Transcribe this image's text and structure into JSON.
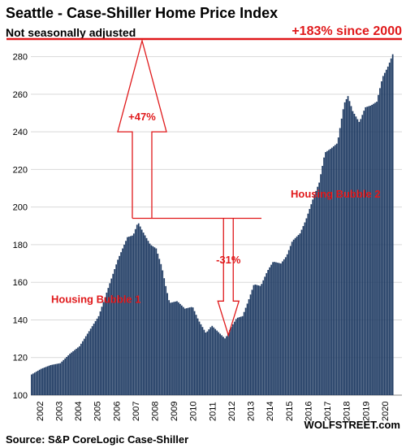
{
  "chart_data": {
    "type": "bar",
    "title": "Seattle - Case-Shiller Home Price Index",
    "subtitle": "Not seasonally adjusted",
    "source": "Source: S&P CoreLogic Case-Shiller",
    "brand": "WOLFSTREET.com",
    "ylim": [
      100,
      285
    ],
    "yticks": [
      100,
      120,
      140,
      160,
      180,
      200,
      220,
      240,
      260,
      280
    ],
    "xlim": [
      2002,
      2021.35
    ],
    "xticks": [
      "2002",
      "2003",
      "2004",
      "2005",
      "2006",
      "2007",
      "2008",
      "2009",
      "2010",
      "2011",
      "2012",
      "2013",
      "2014",
      "2015",
      "2016",
      "2017",
      "2018",
      "2019",
      "2020"
    ],
    "grid": true,
    "bar_color": "#1f3b63",
    "anchors": [
      [
        2002.0,
        111
      ],
      [
        2002.5,
        114
      ],
      [
        2003.0,
        116
      ],
      [
        2003.5,
        117
      ],
      [
        2004.0,
        122
      ],
      [
        2004.5,
        126
      ],
      [
        2005.0,
        134
      ],
      [
        2005.5,
        142
      ],
      [
        2006.0,
        157
      ],
      [
        2006.5,
        172
      ],
      [
        2007.0,
        184
      ],
      [
        2007.3,
        185
      ],
      [
        2007.55,
        192
      ],
      [
        2007.8,
        187
      ],
      [
        2008.2,
        180
      ],
      [
        2008.5,
        178
      ],
      [
        2008.8,
        168
      ],
      [
        2009.0,
        158
      ],
      [
        2009.2,
        149
      ],
      [
        2009.6,
        150
      ],
      [
        2010.0,
        146
      ],
      [
        2010.4,
        147
      ],
      [
        2010.7,
        140
      ],
      [
        2011.1,
        133
      ],
      [
        2011.4,
        137
      ],
      [
        2011.8,
        133
      ],
      [
        2012.1,
        130
      ],
      [
        2012.4,
        136
      ],
      [
        2012.7,
        141
      ],
      [
        2013.0,
        142
      ],
      [
        2013.3,
        150
      ],
      [
        2013.6,
        159
      ],
      [
        2013.95,
        158
      ],
      [
        2014.3,
        166
      ],
      [
        2014.6,
        171
      ],
      [
        2015.0,
        170
      ],
      [
        2015.3,
        174
      ],
      [
        2015.6,
        182
      ],
      [
        2016.0,
        186
      ],
      [
        2016.3,
        193
      ],
      [
        2016.7,
        205
      ],
      [
        2017.0,
        213
      ],
      [
        2017.3,
        229
      ],
      [
        2017.6,
        231
      ],
      [
        2017.95,
        234
      ],
      [
        2018.3,
        255
      ],
      [
        2018.5,
        259
      ],
      [
        2018.75,
        251
      ],
      [
        2019.1,
        245
      ],
      [
        2019.4,
        253
      ],
      [
        2019.7,
        254
      ],
      [
        2020.0,
        256
      ],
      [
        2020.3,
        269
      ],
      [
        2020.6,
        275
      ],
      [
        2020.9,
        283
      ]
    ],
    "annotations": {
      "top_line_label": "+183% since 2000",
      "top_line_value": 285,
      "rise_label": "+47%",
      "rise_from": 131,
      "drop_label": "-31%",
      "peak_line_value": 194,
      "bubble1_label": "Housing Bubble 1",
      "bubble2_label": "Housing Bubble 2"
    }
  }
}
